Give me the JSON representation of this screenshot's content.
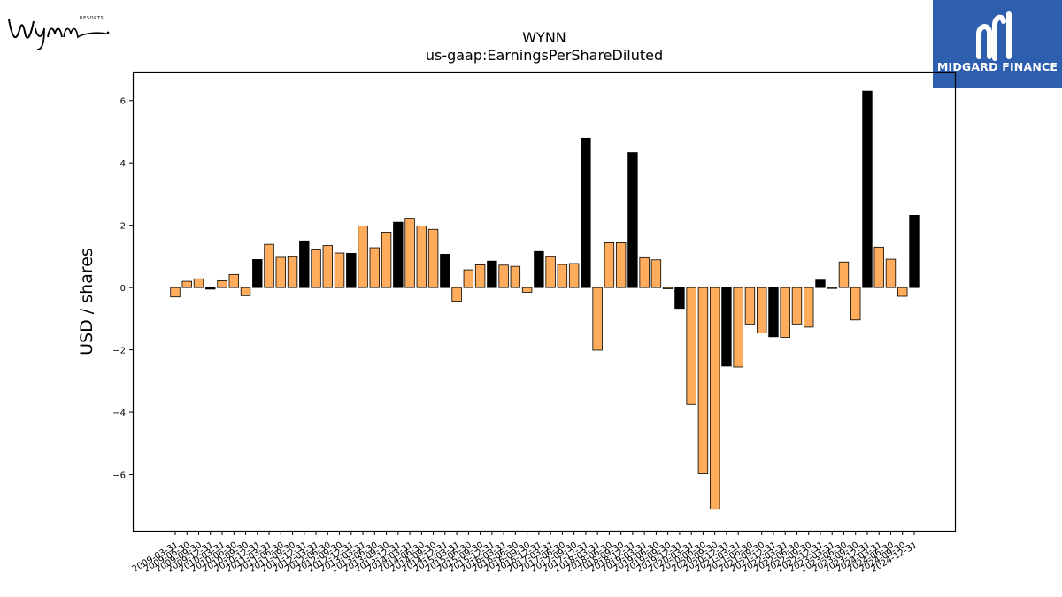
{
  "branding": {
    "company_logo_text": "Wynn",
    "company_logo_subtext": "RESORTS",
    "watermark_text": "MIDGARD FINANCE",
    "watermark_bg": "#2d5fae"
  },
  "chart_data": {
    "type": "bar",
    "title": "WYNN",
    "subtitle": "us-gaap:EarningsPerShareDiluted",
    "ylabel": "USD / shares",
    "xlabel": "",
    "ylim": [
      -7.8,
      6.9
    ],
    "yticks": [
      -6,
      -4,
      -2,
      0,
      2,
      4,
      6
    ],
    "colors": {
      "quarterly": "#ffad5c",
      "annual": "#000000"
    },
    "categories": [
      "2009-03-31",
      "2009-06-30",
      "2009-09-30",
      "2009-12-31",
      "2010-03-31",
      "2010-06-30",
      "2010-09-30",
      "2010-12-31",
      "2011-03-31",
      "2011-06-30",
      "2011-09-30",
      "2011-12-31",
      "2012-03-31",
      "2012-06-30",
      "2012-09-30",
      "2012-12-31",
      "2013-03-31",
      "2013-06-30",
      "2013-09-30",
      "2013-12-31",
      "2014-03-31",
      "2014-06-30",
      "2014-09-30",
      "2014-12-31",
      "2015-03-31",
      "2015-06-30",
      "2015-09-30",
      "2015-12-31",
      "2016-03-31",
      "2016-06-30",
      "2016-09-30",
      "2016-12-31",
      "2017-03-31",
      "2017-06-30",
      "2017-09-30",
      "2017-12-31",
      "2018-03-31",
      "2018-06-30",
      "2018-09-30",
      "2018-12-31",
      "2019-03-31",
      "2019-06-30",
      "2019-09-30",
      "2019-12-31",
      "2020-03-31",
      "2020-06-30",
      "2020-09-30",
      "2020-12-31",
      "2021-03-31",
      "2021-06-30",
      "2021-09-30",
      "2021-12-31",
      "2022-03-31",
      "2022-06-30",
      "2022-09-30",
      "2022-12-31",
      "2023-03-31",
      "2023-06-30",
      "2023-09-30",
      "2023-12-31",
      "2024-03-31",
      "2024-06-30",
      "2024-09-30",
      "2024-12-31"
    ],
    "values": [
      -0.3,
      0.2,
      0.28,
      -0.05,
      0.22,
      0.42,
      -0.26,
      0.9,
      1.39,
      0.97,
      0.99,
      1.5,
      1.21,
      1.35,
      1.11,
      1.1,
      1.98,
      1.28,
      1.78,
      2.1,
      2.2,
      1.98,
      1.87,
      1.07,
      -0.44,
      0.57,
      0.73,
      0.85,
      0.72,
      0.68,
      -0.15,
      1.16,
      0.99,
      0.74,
      0.77,
      4.79,
      -2.01,
      1.44,
      1.44,
      4.33,
      0.96,
      0.89,
      -0.04,
      -0.67,
      -3.75,
      -5.97,
      -7.11,
      -2.52,
      -2.55,
      -1.17,
      -1.46,
      -1.58,
      -1.6,
      -1.17,
      -1.27,
      0.24,
      -0.03,
      0.82,
      -1.04,
      6.3,
      1.3,
      0.91,
      -0.28,
      2.32
    ],
    "annual_flags": [
      0,
      0,
      0,
      1,
      0,
      0,
      0,
      1,
      0,
      0,
      0,
      1,
      0,
      0,
      0,
      1,
      0,
      0,
      0,
      1,
      0,
      0,
      0,
      1,
      0,
      0,
      0,
      1,
      0,
      0,
      0,
      1,
      0,
      0,
      0,
      1,
      0,
      0,
      0,
      1,
      0,
      0,
      0,
      1,
      0,
      0,
      0,
      1,
      0,
      0,
      0,
      1,
      0,
      0,
      0,
      1,
      0,
      0,
      0,
      1,
      0,
      0,
      0,
      1
    ],
    "grid": false,
    "legend": "none"
  }
}
